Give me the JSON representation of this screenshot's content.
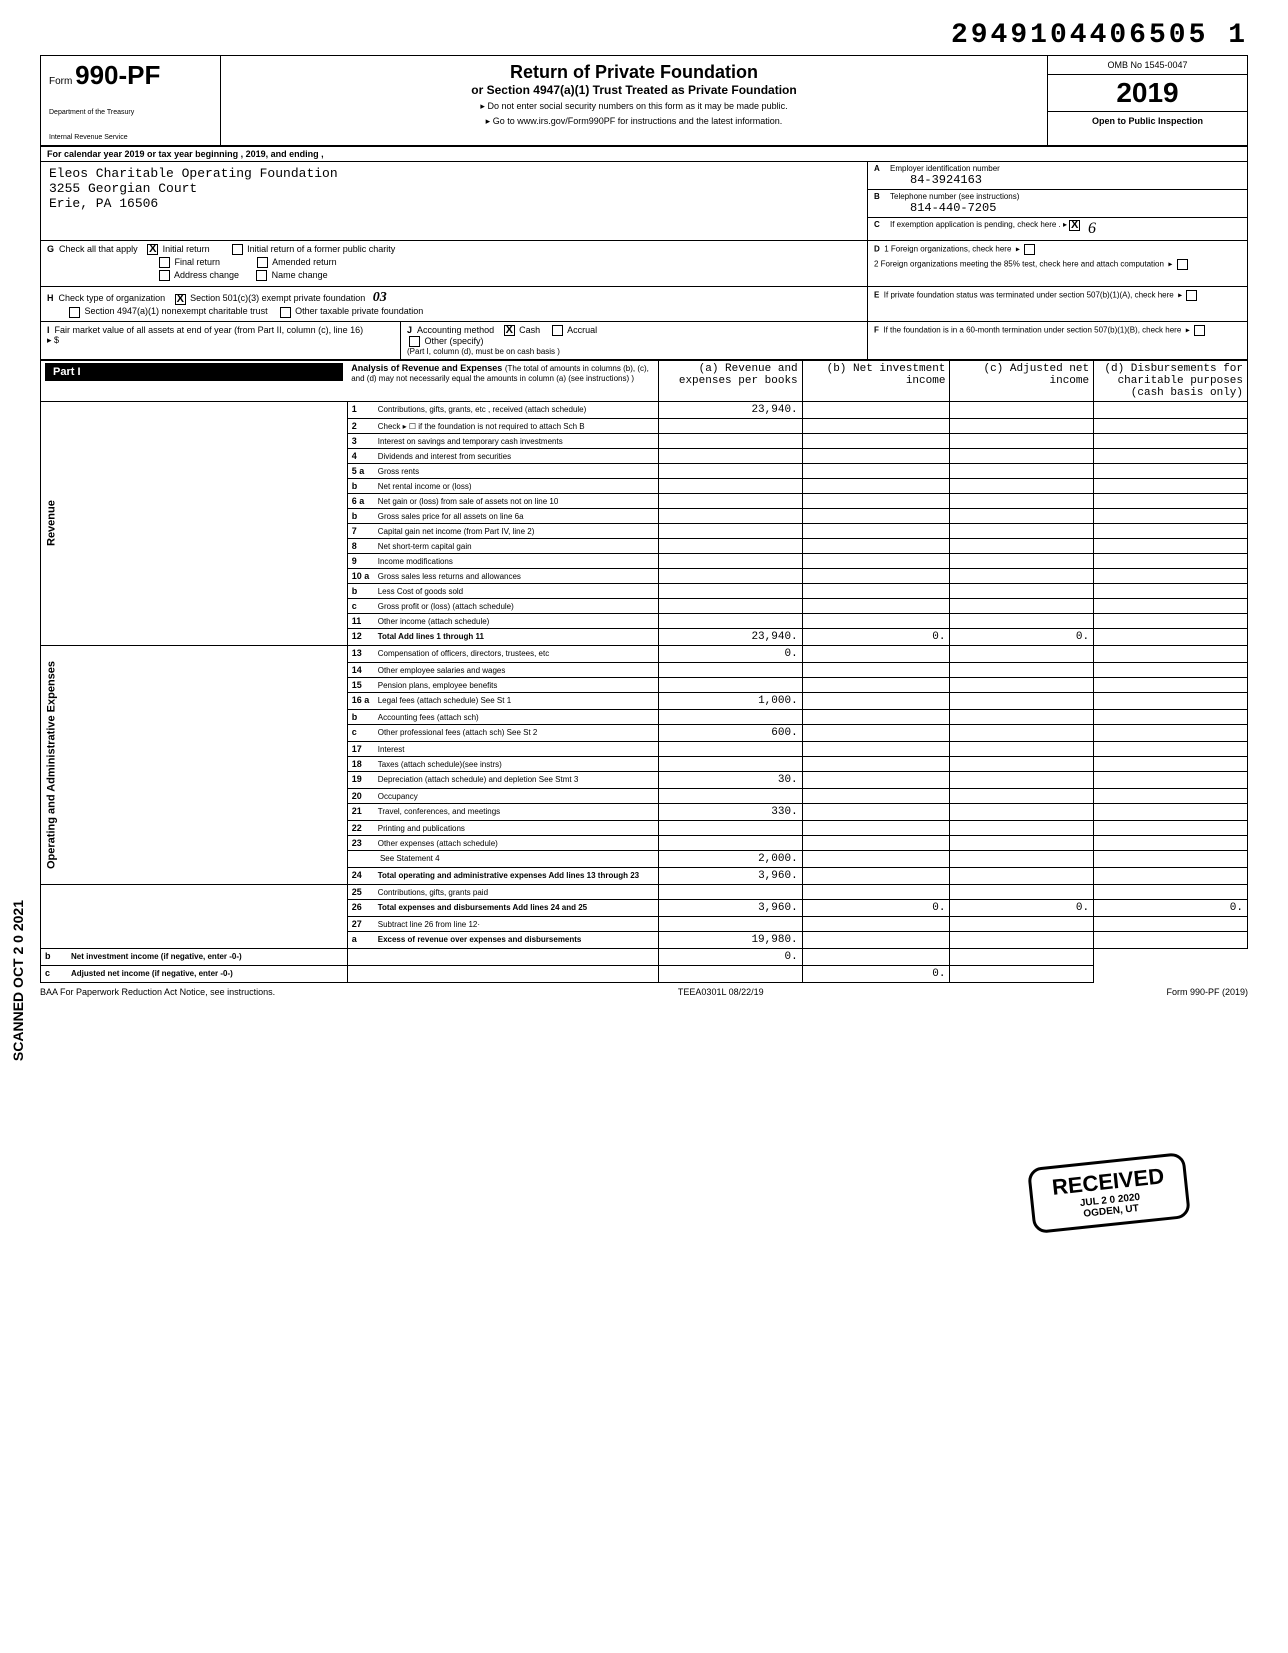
{
  "top_number": "2949104406505 1",
  "omb": "OMB No 1545-0047",
  "form_no_prefix": "Form",
  "form_no": "990-PF",
  "dept1": "Department of the Treasury",
  "dept2": "Internal Revenue Service",
  "title": "Return of Private Foundation",
  "subtitle": "or Section 4947(a)(1) Trust Treated as Private Foundation",
  "note1": "▸ Do not enter social security numbers on this form as it may be made public.",
  "note2": "▸ Go to www.irs.gov/Form990PF for instructions and the latest information.",
  "year": "2019",
  "inspection": "Open to Public Inspection",
  "cal_year": "For calendar year 2019 or tax year beginning                          , 2019, and ending                          ,",
  "org_name": "Eleos Charitable Operating Foundation",
  "org_addr1": "3255 Georgian Court",
  "org_addr2": "Erie, PA 16506",
  "box_a_label": "Employer identification number",
  "box_a_val": "84-3924163",
  "box_b_label": "Telephone number (see instructions)",
  "box_b_val": "814-440-7205",
  "box_c_label": "If exemption application is pending, check here . ▸",
  "box_d1_label": "1 Foreign organizations, check here",
  "box_d2_label": "2 Foreign organizations meeting the 85% test, check here and attach computation",
  "box_e_label": "If private foundation status was terminated under section 507(b)(1)(A), check here",
  "box_f_label": "If the foundation is in a 60-month termination under section 507(b)(1)(B), check here",
  "g_label": "Check all that apply",
  "g_initial": "Initial return",
  "g_initial_former": "Initial return of a former public charity",
  "g_final": "Final return",
  "g_amended": "Amended return",
  "g_addr": "Address change",
  "g_name": "Name change",
  "h_label": "Check type of organization",
  "h_501c3": "Section 501(c)(3) exempt private foundation",
  "h_4947": "Section 4947(a)(1) nonexempt charitable trust",
  "h_other": "Other taxable private foundation",
  "h_handwritten": "03",
  "i_label": "Fair market value of all assets at end of year (from Part II, column (c), line 16)",
  "i_arrow": "▸ $",
  "j_label": "Accounting method",
  "j_cash": "Cash",
  "j_accrual": "Accrual",
  "j_other": "Other (specify)",
  "j_note": "(Part I, column (d), must be on cash basis )",
  "part1": "Part I",
  "part1_title": "Analysis of Revenue and Expenses",
  "part1_note": "(The total of amounts in columns (b), (c), and (d) may not necessarily equal the amounts in column (a) (see instructions) )",
  "col_a": "(a) Revenue and expenses per books",
  "col_b": "(b) Net investment income",
  "col_c": "(c) Adjusted net income",
  "col_d": "(d) Disbursements for charitable purposes (cash basis only)",
  "side_revenue": "Revenue",
  "side_expenses": "Operating and Administrative Expenses",
  "scanned": "SCANNED OCT 2 0 2021",
  "rows": [
    {
      "n": "1",
      "d": "Contributions, gifts, grants, etc , received (attach schedule)",
      "a": "23,940."
    },
    {
      "n": "2",
      "d": "Check ▸ ☐ if the foundation is not required to attach Sch B"
    },
    {
      "n": "3",
      "d": "Interest on savings and temporary cash investments"
    },
    {
      "n": "4",
      "d": "Dividends and interest from securities"
    },
    {
      "n": "5 a",
      "d": "Gross rents"
    },
    {
      "n": "b",
      "d": "Net rental income or (loss)"
    },
    {
      "n": "6 a",
      "d": "Net gain or (loss) from sale of assets not on line 10"
    },
    {
      "n": "b",
      "d": "Gross sales price for all assets on line 6a"
    },
    {
      "n": "7",
      "d": "Capital gain net income (from Part IV, line 2)"
    },
    {
      "n": "8",
      "d": "Net short-term capital gain"
    },
    {
      "n": "9",
      "d": "Income modifications"
    },
    {
      "n": "10 a",
      "d": "Gross sales less returns and allowances"
    },
    {
      "n": "b",
      "d": "Less Cost of goods sold"
    },
    {
      "n": "c",
      "d": "Gross profit or (loss) (attach schedule)"
    },
    {
      "n": "11",
      "d": "Other income (attach schedule)"
    },
    {
      "n": "12",
      "d": "Total Add lines 1 through 11",
      "a": "23,940.",
      "b": "0.",
      "c": "0.",
      "bold": true
    },
    {
      "n": "13",
      "d": "Compensation of officers, directors, trustees, etc",
      "a": "0."
    },
    {
      "n": "14",
      "d": "Other employee salaries and wages"
    },
    {
      "n": "15",
      "d": "Pension plans, employee benefits"
    },
    {
      "n": "16 a",
      "d": "Legal fees (attach schedule)     See St 1",
      "a": "1,000."
    },
    {
      "n": "b",
      "d": "Accounting fees (attach sch)"
    },
    {
      "n": "c",
      "d": "Other professional fees (attach sch)    See St 2",
      "a": "600."
    },
    {
      "n": "17",
      "d": "Interest"
    },
    {
      "n": "18",
      "d": "Taxes (attach schedule)(see instrs)"
    },
    {
      "n": "19",
      "d": "Depreciation (attach schedule) and depletion    See Stmt 3",
      "a": "30."
    },
    {
      "n": "20",
      "d": "Occupancy"
    },
    {
      "n": "21",
      "d": "Travel, conferences, and meetings",
      "a": "330."
    },
    {
      "n": "22",
      "d": "Printing and publications"
    },
    {
      "n": "23",
      "d": "Other expenses (attach schedule)"
    },
    {
      "n": "",
      "d": "                    See Statement 4",
      "a": "2,000."
    },
    {
      "n": "24",
      "d": "Total operating and administrative expenses  Add lines 13 through 23",
      "a": "3,960.",
      "bold": true
    },
    {
      "n": "25",
      "d": "Contributions, gifts, grants paid"
    },
    {
      "n": "26",
      "d": "Total expenses and disbursements Add lines 24 and 25",
      "a": "3,960.",
      "b": "0.",
      "c": "0.",
      "dd": "0.",
      "bold": true
    },
    {
      "n": "27",
      "d": "Subtract line 26 from line 12·"
    },
    {
      "n": "a",
      "d": "Excess of revenue over expenses and disbursements",
      "a": "19,980.",
      "bold": true
    },
    {
      "n": "b",
      "d": "Net investment income (if negative, enter -0-)",
      "b": "0.",
      "bold": true
    },
    {
      "n": "c",
      "d": "Adjusted net income (if negative, enter -0-)",
      "c": "0.",
      "bold": true
    }
  ],
  "stamp_received": "RECEIVED",
  "stamp_date": "JUL 2 0 2020",
  "stamp_ogden": "OGDEN, UT",
  "footer_left": "BAA  For Paperwork Reduction Act Notice, see instructions.",
  "footer_mid": "TEEA0301L   08/22/19",
  "footer_right": "Form 990-PF (2019)",
  "colors": {
    "black": "#000000",
    "white": "#ffffff",
    "shade": "#e8e8e8"
  }
}
